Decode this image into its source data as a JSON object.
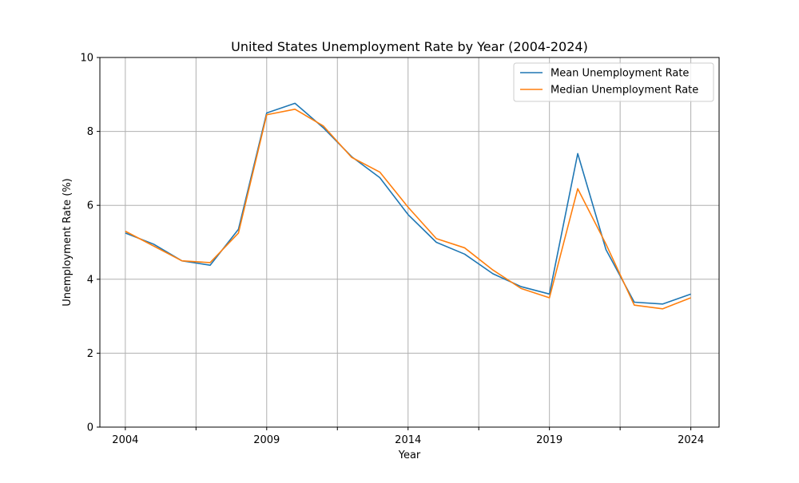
{
  "chart_data": {
    "type": "line",
    "title": "United States Unemployment Rate by Year (2004-2024)",
    "xlabel": "Year",
    "ylabel": "Unemployment Rate (%)",
    "x": [
      2004,
      2005,
      2006,
      2007,
      2008,
      2009,
      2010,
      2011,
      2012,
      2013,
      2014,
      2015,
      2016,
      2017,
      2018,
      2019,
      2020,
      2021,
      2022,
      2023,
      2024
    ],
    "xlim": [
      2003.1,
      2025.0
    ],
    "ylim": [
      0,
      10
    ],
    "x_ticks_labeled": [
      2004,
      2009,
      2014,
      2019,
      2024
    ],
    "x_ticks_unlabeled": [
      2006.5,
      2011.5,
      2016.5,
      2021.5
    ],
    "x_ticks_all": [
      2004,
      2006.5,
      2009,
      2011.5,
      2014,
      2016.5,
      2019,
      2021.5,
      2024
    ],
    "y_ticks": [
      0,
      2,
      4,
      6,
      8,
      10
    ],
    "grid": true,
    "legend_position": "top-right",
    "series": [
      {
        "name": "Mean Unemployment Rate",
        "color": "#1f77b4",
        "values": [
          5.25,
          4.95,
          4.5,
          4.38,
          5.35,
          8.5,
          8.76,
          8.1,
          7.32,
          6.75,
          5.75,
          5.0,
          4.68,
          4.15,
          3.8,
          3.6,
          7.4,
          4.8,
          3.38,
          3.33,
          3.6
        ]
      },
      {
        "name": "Median Unemployment Rate",
        "color": "#ff7f0e",
        "values": [
          5.3,
          4.9,
          4.5,
          4.45,
          5.25,
          8.45,
          8.6,
          8.15,
          7.3,
          6.9,
          5.95,
          5.1,
          4.85,
          4.25,
          3.75,
          3.5,
          6.45,
          4.95,
          3.3,
          3.2,
          3.5
        ]
      }
    ]
  }
}
